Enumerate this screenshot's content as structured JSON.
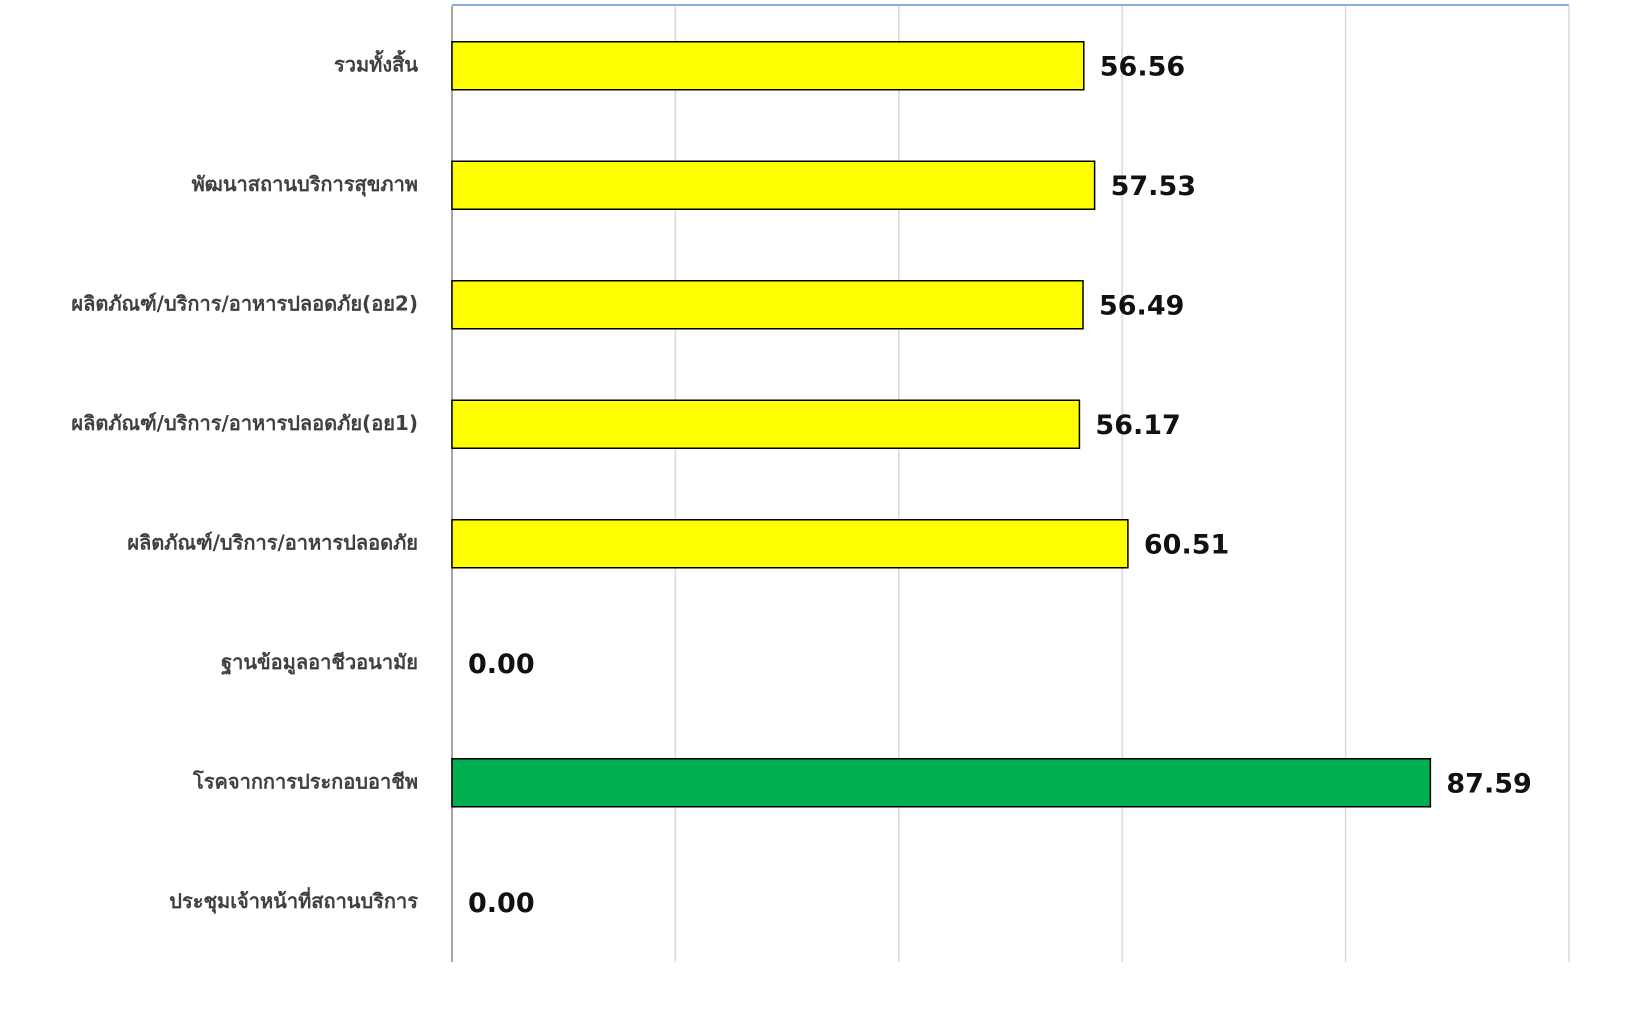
{
  "chart_data": {
    "type": "bar",
    "orientation": "horizontal",
    "categories": [
      "รวมทั้งสิ้น",
      "พัฒนาสถานบริการสุขภาพ",
      "ผลิตภัณฑ์/บริการ/อาหารปลอดภัย(อย2)",
      "ผลิตภัณฑ์/บริการ/อาหารปลอดภัย(อย1)",
      "ผลิตภัณฑ์/บริการ/อาหารปลอดภัย",
      "ฐานข้อมูลอาชีวอนามัย",
      "โรคจากการประกอบอาชีพ",
      "ประชุมเจ้าหน้าที่สถานบริการ"
    ],
    "values": [
      56.56,
      57.53,
      56.49,
      56.17,
      60.51,
      0,
      87.59,
      0
    ],
    "value_labels": [
      "56.56",
      "57.53",
      "56.49",
      "56.17",
      "60.51",
      "0.00",
      "87.59",
      "0.00"
    ],
    "colors": [
      "#ffff00",
      "#ffff00",
      "#ffff00",
      "#ffff00",
      "#ffff00",
      "#ffff00",
      "#00b050",
      "#ffff00"
    ],
    "xlim": [
      0,
      100
    ],
    "xticks": [
      0,
      20,
      40,
      60,
      80,
      100
    ],
    "grid": true
  }
}
